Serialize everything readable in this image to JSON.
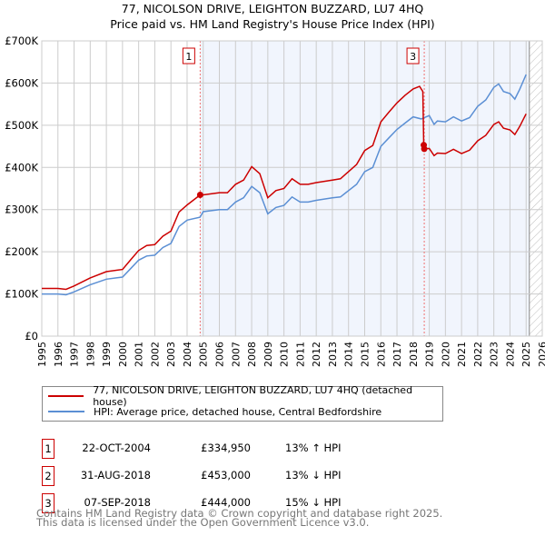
{
  "chart_data": {
    "type": "line",
    "title": "77, NICOLSON DRIVE, LEIGHTON BUZZARD, LU7 4HQ",
    "subtitle": "Price paid vs. HM Land Registry's House Price Index (HPI)",
    "xlim": [
      1995,
      2026
    ],
    "ylim": [
      0,
      700000
    ],
    "yticks": [
      0,
      100000,
      200000,
      300000,
      400000,
      500000,
      600000,
      700000
    ],
    "ytick_labels": [
      "£0",
      "£100K",
      "£200K",
      "£300K",
      "£400K",
      "£500K",
      "£600K",
      "£700K"
    ],
    "xticks": [
      1995,
      1996,
      1997,
      1998,
      1999,
      2000,
      2001,
      2002,
      2003,
      2004,
      2005,
      2006,
      2007,
      2008,
      2009,
      2010,
      2011,
      2012,
      2013,
      2014,
      2015,
      2016,
      2017,
      2018,
      2019,
      2020,
      2021,
      2022,
      2023,
      2024,
      2025,
      2026
    ],
    "grid": true,
    "shaded_from": 2004.81,
    "hatched_from": 2025.2,
    "series": [
      {
        "name": "77, NICOLSON DRIVE, LEIGHTON BUZZARD, LU7 4HQ (detached house)",
        "color": "#cc0000",
        "x": [
          1995,
          1996,
          1996.5,
          1997,
          1998,
          1999,
          2000,
          2000.5,
          2001,
          2001.5,
          2002,
          2002.5,
          2003,
          2003.5,
          2004,
          2004.81,
          2005,
          2006,
          2006.5,
          2007,
          2007.5,
          2008,
          2008.5,
          2009,
          2009.5,
          2010,
          2010.5,
          2011,
          2011.5,
          2012,
          2013,
          2013.5,
          2014,
          2014.5,
          2015,
          2015.5,
          2016,
          2016.5,
          2017,
          2017.5,
          2018,
          2018.4,
          2018.6,
          2018.66,
          2018.69,
          2019,
          2019.3,
          2019.5,
          2020,
          2020.5,
          2021,
          2021.5,
          2022,
          2022.5,
          2023,
          2023.3,
          2023.6,
          2024,
          2024.3,
          2024.6,
          2025
        ],
        "values": [
          113000,
          113000,
          111000,
          119000,
          138000,
          153000,
          158000,
          181000,
          203000,
          215000,
          217000,
          237000,
          249000,
          294000,
          311000,
          334950,
          335000,
          340000,
          340000,
          360000,
          370000,
          402000,
          385000,
          328000,
          345000,
          350000,
          373000,
          360000,
          360000,
          364000,
          370000,
          373000,
          390000,
          407000,
          440000,
          452000,
          508000,
          531000,
          553000,
          571000,
          586000,
          592000,
          580000,
          453000,
          444000,
          445000,
          428000,
          434000,
          433000,
          443000,
          433000,
          441000,
          463000,
          476000,
          502000,
          508000,
          493000,
          489000,
          478000,
          497000,
          527000
        ]
      },
      {
        "name": "HPI: Average price, detached house, Central Bedfordshire",
        "color": "#5b8fd4",
        "x": [
          1995,
          1996,
          1996.5,
          1997,
          1998,
          1999,
          2000,
          2000.5,
          2001,
          2001.5,
          2002,
          2002.5,
          2003,
          2003.5,
          2004,
          2004.8,
          2005,
          2006,
          2006.5,
          2007,
          2007.5,
          2008,
          2008.5,
          2009,
          2009.5,
          2010,
          2010.5,
          2011,
          2011.5,
          2012,
          2013,
          2013.5,
          2014,
          2014.5,
          2015,
          2015.5,
          2016,
          2016.5,
          2017,
          2017.5,
          2018,
          2018.5,
          2019,
          2019.3,
          2019.5,
          2020,
          2020.5,
          2021,
          2021.5,
          2022,
          2022.5,
          2023,
          2023.3,
          2023.6,
          2024,
          2024.3,
          2024.6,
          2025
        ],
        "values": [
          100000,
          100000,
          98000,
          105000,
          122000,
          135000,
          140000,
          160000,
          180000,
          190000,
          192000,
          210000,
          220000,
          260000,
          275000,
          282000,
          295000,
          300000,
          300000,
          318000,
          328000,
          355000,
          340000,
          290000,
          305000,
          310000,
          330000,
          318000,
          318000,
          322000,
          328000,
          330000,
          345000,
          360000,
          390000,
          400000,
          450000,
          470000,
          490000,
          505000,
          520000,
          515000,
          523000,
          502000,
          510000,
          508000,
          520000,
          510000,
          518000,
          545000,
          560000,
          590000,
          598000,
          580000,
          575000,
          562000,
          585000,
          620000
        ]
      }
    ],
    "sales": [
      {
        "label": "1",
        "date": "22-OCT-2004",
        "x": 2004.81,
        "price": "£334,950",
        "value": 334950,
        "hpi": "13% ↑ HPI",
        "boxed_on_chart": true
      },
      {
        "label": "2",
        "date": "31-AUG-2018",
        "x": 2018.66,
        "price": "£453,000",
        "value": 453000,
        "hpi": "13% ↓ HPI",
        "boxed_on_chart": false
      },
      {
        "label": "3",
        "date": "07-SEP-2018",
        "x": 2018.69,
        "price": "£444,000",
        "value": 444000,
        "hpi": "15% ↓ HPI",
        "boxed_on_chart": true
      }
    ]
  },
  "footer": {
    "line1": "Contains HM Land Registry data © Crown copyright and database right 2025.",
    "line2": "This data is licensed under the Open Government Licence v3.0."
  }
}
